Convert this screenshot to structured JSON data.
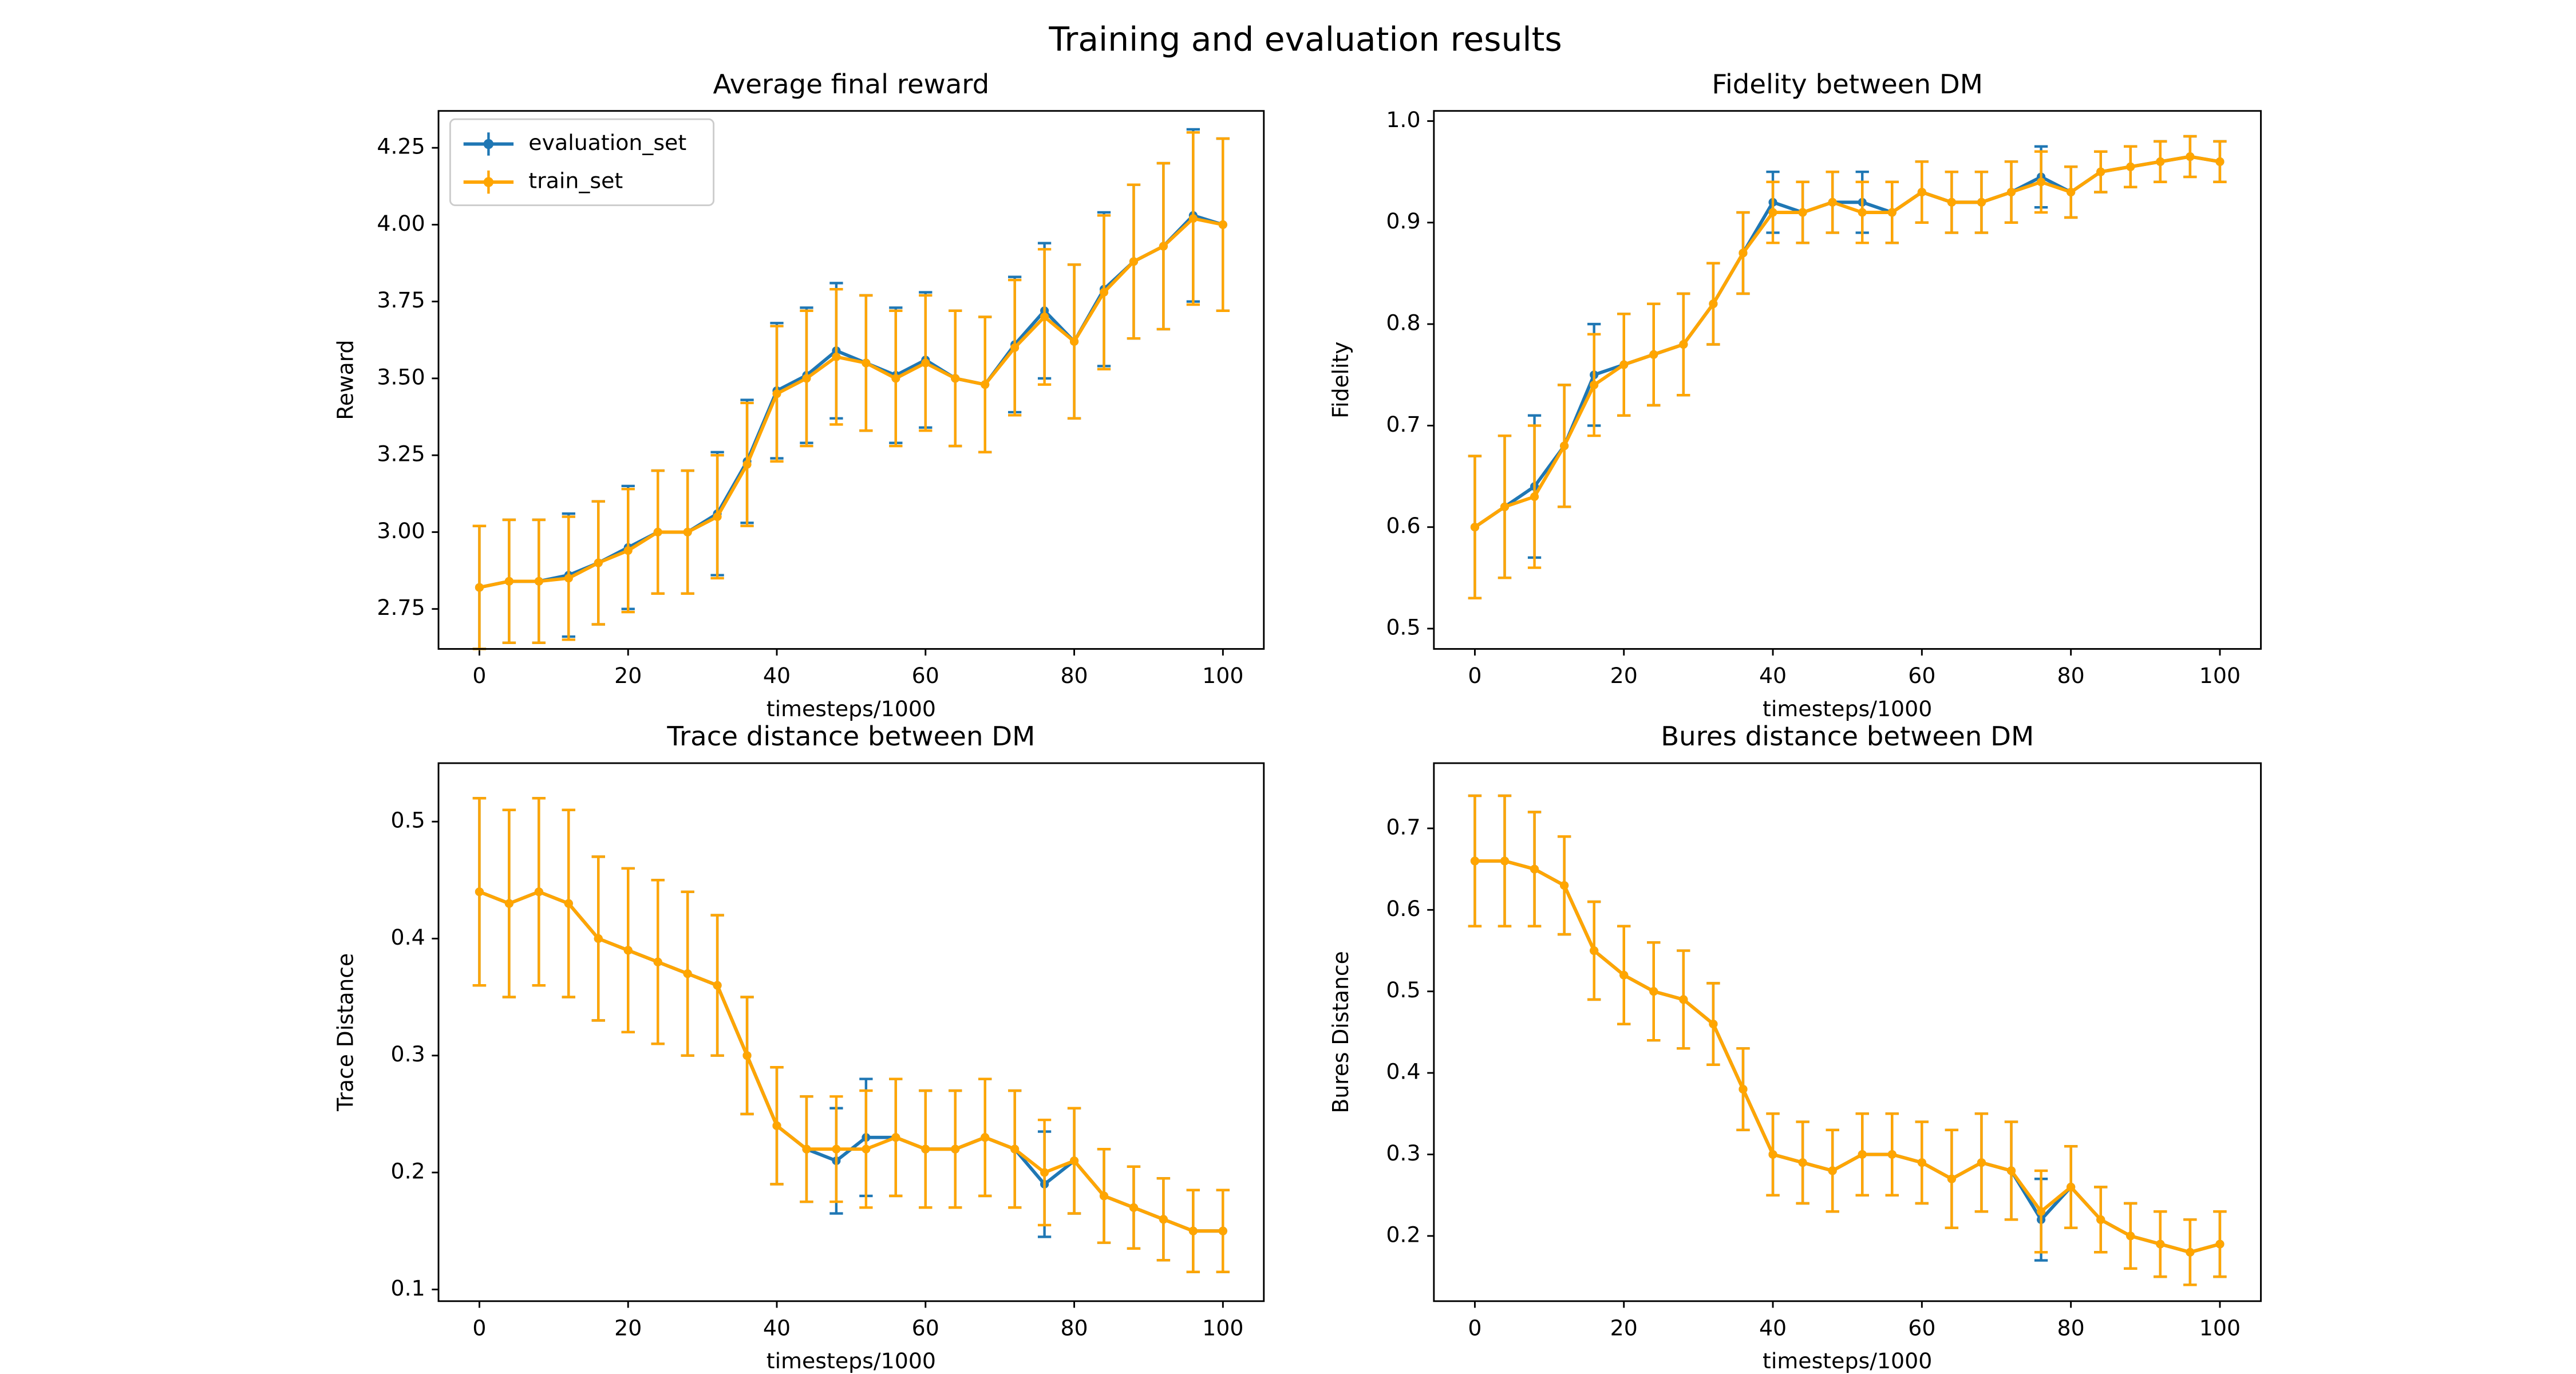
{
  "title": "Training and evaluation results",
  "chart_data": [
    {
      "type": "errorbar",
      "title": "Average final reward",
      "xlabel": "timesteps/1000",
      "ylabel": "Reward",
      "x": [
        0,
        4,
        8,
        12,
        16,
        20,
        24,
        28,
        32,
        36,
        40,
        44,
        48,
        52,
        56,
        60,
        64,
        68,
        72,
        76,
        80,
        84,
        88,
        92,
        96,
        100
      ],
      "xlim": [
        -5.5,
        105.5
      ],
      "xticks": [
        0,
        20,
        40,
        60,
        80,
        100
      ],
      "ylim": [
        2.62,
        4.37
      ],
      "yticks": [
        2.75,
        {
          "value": 3.0,
          "label": "3.00"
        },
        3.25,
        {
          "value": 3.5,
          "label": "3.50"
        },
        3.75,
        {
          "value": 4.0,
          "label": "4.00"
        },
        4.25
      ],
      "legend": "upper left",
      "series": [
        {
          "name": "evaluation_set",
          "color": "#1f77b4",
          "values": [
            2.82,
            2.84,
            2.84,
            2.86,
            2.9,
            2.95,
            3.0,
            3.0,
            3.06,
            3.23,
            3.46,
            3.51,
            3.59,
            3.55,
            3.51,
            3.56,
            3.5,
            3.48,
            3.61,
            3.72,
            3.62,
            3.79,
            3.88,
            3.93,
            4.03,
            4.0
          ],
          "errors": [
            0.2,
            0.2,
            0.2,
            0.2,
            0.2,
            0.2,
            0.2,
            0.2,
            0.2,
            0.2,
            0.22,
            0.22,
            0.22,
            0.22,
            0.22,
            0.22,
            0.22,
            0.22,
            0.22,
            0.22,
            0.25,
            0.25,
            0.25,
            0.27,
            0.28,
            0.28
          ]
        },
        {
          "name": "train_set",
          "color": "#ffa500",
          "values": [
            2.82,
            2.84,
            2.84,
            2.85,
            2.9,
            2.94,
            3.0,
            3.0,
            3.05,
            3.22,
            3.45,
            3.5,
            3.57,
            3.55,
            3.5,
            3.55,
            3.5,
            3.48,
            3.6,
            3.7,
            3.62,
            3.78,
            3.88,
            3.93,
            4.02,
            4.0
          ],
          "errors": [
            0.2,
            0.2,
            0.2,
            0.2,
            0.2,
            0.2,
            0.2,
            0.2,
            0.2,
            0.2,
            0.22,
            0.22,
            0.22,
            0.22,
            0.22,
            0.22,
            0.22,
            0.22,
            0.22,
            0.22,
            0.25,
            0.25,
            0.25,
            0.27,
            0.28,
            0.28
          ]
        }
      ]
    },
    {
      "type": "errorbar",
      "title": "Fidelity between DM",
      "xlabel": "timesteps/1000",
      "ylabel": "Fidelity",
      "x": [
        0,
        4,
        8,
        12,
        16,
        20,
        24,
        28,
        32,
        36,
        40,
        44,
        48,
        52,
        56,
        60,
        64,
        68,
        72,
        76,
        80,
        84,
        88,
        92,
        96,
        100
      ],
      "xlim": [
        -5.5,
        105.5
      ],
      "xticks": [
        0,
        20,
        40,
        60,
        80,
        100
      ],
      "ylim": [
        0.48,
        1.01
      ],
      "yticks": [
        0.5,
        0.6,
        0.7,
        0.8,
        0.9,
        {
          "value": 1.0,
          "label": "1.0"
        }
      ],
      "series": [
        {
          "color": "#1f77b4",
          "values": [
            0.6,
            0.62,
            0.64,
            0.68,
            0.75,
            0.76,
            0.77,
            0.78,
            0.82,
            0.87,
            0.92,
            0.91,
            0.92,
            0.92,
            0.91,
            0.93,
            0.92,
            0.92,
            0.93,
            0.945,
            0.93,
            0.95,
            0.955,
            0.96,
            0.965,
            0.96
          ],
          "errors": [
            0.07,
            0.07,
            0.07,
            0.06,
            0.05,
            0.05,
            0.05,
            0.05,
            0.04,
            0.04,
            0.03,
            0.03,
            0.03,
            0.03,
            0.03,
            0.03,
            0.03,
            0.03,
            0.03,
            0.03,
            0.025,
            0.02,
            0.02,
            0.02,
            0.02,
            0.02
          ]
        },
        {
          "color": "#ffa500",
          "values": [
            0.6,
            0.62,
            0.63,
            0.68,
            0.74,
            0.76,
            0.77,
            0.78,
            0.82,
            0.87,
            0.91,
            0.91,
            0.92,
            0.91,
            0.91,
            0.93,
            0.92,
            0.92,
            0.93,
            0.94,
            0.93,
            0.95,
            0.955,
            0.96,
            0.965,
            0.96
          ],
          "errors": [
            0.07,
            0.07,
            0.07,
            0.06,
            0.05,
            0.05,
            0.05,
            0.05,
            0.04,
            0.04,
            0.03,
            0.03,
            0.03,
            0.03,
            0.03,
            0.03,
            0.03,
            0.03,
            0.03,
            0.03,
            0.025,
            0.02,
            0.02,
            0.02,
            0.02,
            0.02
          ]
        }
      ]
    },
    {
      "type": "errorbar",
      "title": "Trace distance between DM",
      "xlabel": "timesteps/1000",
      "ylabel": "Trace Distance",
      "x": [
        0,
        4,
        8,
        12,
        16,
        20,
        24,
        28,
        32,
        36,
        40,
        44,
        48,
        52,
        56,
        60,
        64,
        68,
        72,
        76,
        80,
        84,
        88,
        92,
        96,
        100
      ],
      "xlim": [
        -5.5,
        105.5
      ],
      "xticks": [
        0,
        20,
        40,
        60,
        80,
        100
      ],
      "ylim": [
        0.09,
        0.55
      ],
      "yticks": [
        0.1,
        0.2,
        0.3,
        0.4,
        0.5
      ],
      "series": [
        {
          "color": "#1f77b4",
          "values": [
            0.44,
            0.43,
            0.44,
            0.43,
            0.4,
            0.39,
            0.38,
            0.37,
            0.36,
            0.3,
            0.24,
            0.22,
            0.21,
            0.23,
            0.23,
            0.22,
            0.22,
            0.23,
            0.22,
            0.19,
            0.21,
            0.18,
            0.17,
            0.16,
            0.15,
            0.15
          ],
          "errors": [
            0.08,
            0.08,
            0.08,
            0.08,
            0.07,
            0.07,
            0.07,
            0.07,
            0.06,
            0.05,
            0.05,
            0.045,
            0.045,
            0.05,
            0.05,
            0.05,
            0.05,
            0.05,
            0.05,
            0.045,
            0.045,
            0.04,
            0.035,
            0.035,
            0.035,
            0.035
          ]
        },
        {
          "color": "#ffa500",
          "values": [
            0.44,
            0.43,
            0.44,
            0.43,
            0.4,
            0.39,
            0.38,
            0.37,
            0.36,
            0.3,
            0.24,
            0.22,
            0.22,
            0.22,
            0.23,
            0.22,
            0.22,
            0.23,
            0.22,
            0.2,
            0.21,
            0.18,
            0.17,
            0.16,
            0.15,
            0.15
          ],
          "errors": [
            0.08,
            0.08,
            0.08,
            0.08,
            0.07,
            0.07,
            0.07,
            0.07,
            0.06,
            0.05,
            0.05,
            0.045,
            0.045,
            0.05,
            0.05,
            0.05,
            0.05,
            0.05,
            0.05,
            0.045,
            0.045,
            0.04,
            0.035,
            0.035,
            0.035,
            0.035
          ]
        }
      ]
    },
    {
      "type": "errorbar",
      "title": "Bures distance between DM",
      "xlabel": "timesteps/1000",
      "ylabel": "Bures Distance",
      "x": [
        0,
        4,
        8,
        12,
        16,
        20,
        24,
        28,
        32,
        36,
        40,
        44,
        48,
        52,
        56,
        60,
        64,
        68,
        72,
        76,
        80,
        84,
        88,
        92,
        96,
        100
      ],
      "xlim": [
        -5.5,
        105.5
      ],
      "xticks": [
        0,
        20,
        40,
        60,
        80,
        100
      ],
      "ylim": [
        0.12,
        0.78
      ],
      "yticks": [
        0.2,
        0.3,
        0.4,
        0.5,
        0.6,
        0.7
      ],
      "series": [
        {
          "color": "#1f77b4",
          "values": [
            0.66,
            0.66,
            0.65,
            0.63,
            0.55,
            0.52,
            0.5,
            0.49,
            0.46,
            0.38,
            0.3,
            0.29,
            0.28,
            0.3,
            0.3,
            0.29,
            0.27,
            0.29,
            0.28,
            0.22,
            0.26,
            0.22,
            0.2,
            0.19,
            0.18,
            0.19
          ],
          "errors": [
            0.08,
            0.08,
            0.07,
            0.06,
            0.06,
            0.06,
            0.06,
            0.06,
            0.05,
            0.05,
            0.05,
            0.05,
            0.05,
            0.05,
            0.05,
            0.05,
            0.06,
            0.06,
            0.06,
            0.05,
            0.05,
            0.04,
            0.04,
            0.04,
            0.04,
            0.04
          ]
        },
        {
          "color": "#ffa500",
          "values": [
            0.66,
            0.66,
            0.65,
            0.63,
            0.55,
            0.52,
            0.5,
            0.49,
            0.46,
            0.38,
            0.3,
            0.29,
            0.28,
            0.3,
            0.3,
            0.29,
            0.27,
            0.29,
            0.28,
            0.23,
            0.26,
            0.22,
            0.2,
            0.19,
            0.18,
            0.19
          ],
          "errors": [
            0.08,
            0.08,
            0.07,
            0.06,
            0.06,
            0.06,
            0.06,
            0.06,
            0.05,
            0.05,
            0.05,
            0.05,
            0.05,
            0.05,
            0.05,
            0.05,
            0.06,
            0.06,
            0.06,
            0.05,
            0.05,
            0.04,
            0.04,
            0.04,
            0.04,
            0.04
          ]
        }
      ]
    }
  ]
}
